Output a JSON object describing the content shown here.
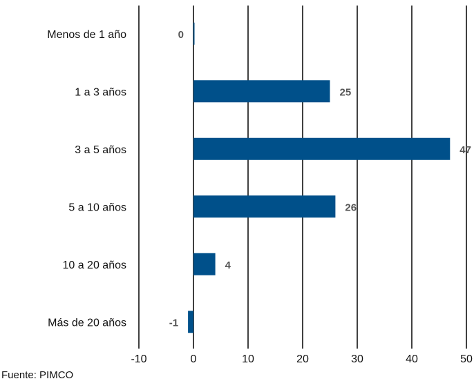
{
  "chart_data": {
    "type": "bar",
    "orientation": "horizontal",
    "categories": [
      "Menos de 1 año",
      "1 a 3 años",
      "3 a 5 años",
      "5 a 10 años",
      "10 a 20 años",
      "Más de 20 años"
    ],
    "values": [
      0,
      25,
      47,
      26,
      4,
      -1
    ],
    "data_labels": [
      "0",
      "25",
      "47",
      "26",
      "4",
      "-1"
    ],
    "xlim": [
      -10,
      50
    ],
    "x_ticks": [
      -10,
      0,
      10,
      20,
      30,
      40,
      50
    ],
    "x_tick_labels": [
      "-10",
      "0",
      "10",
      "20",
      "30",
      "40",
      "50"
    ],
    "title": "",
    "xlabel": "",
    "ylabel": "",
    "grid": "vertical",
    "bar_color": "#00508a"
  },
  "source": "Fuente: PIMCO"
}
